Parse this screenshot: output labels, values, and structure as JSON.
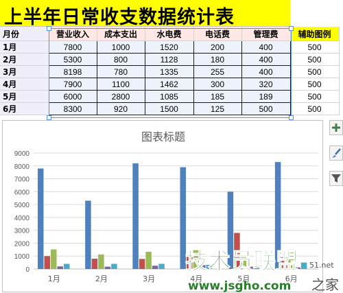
{
  "title": "上半年日常收支数据统计表",
  "headers": {
    "month": "月份",
    "income": "营业收入",
    "cost": "成本支出",
    "water": "水电费",
    "phone": "电话费",
    "mgmt": "管理费",
    "aux": "辅助图例"
  },
  "rows": [
    {
      "month": "1月",
      "income": "7800",
      "cost": "1000",
      "water": "1520",
      "phone": "200",
      "mgmt": "400",
      "aux": "500"
    },
    {
      "month": "2月",
      "income": "5300",
      "cost": "800",
      "water": "1128",
      "phone": "180",
      "mgmt": "400",
      "aux": "500"
    },
    {
      "month": "3月",
      "income": "8198",
      "cost": "780",
      "water": "1335",
      "phone": "255",
      "mgmt": "400",
      "aux": "500"
    },
    {
      "month": "4月",
      "income": "7900",
      "cost": "1100",
      "water": "1462",
      "phone": "300",
      "mgmt": "320",
      "aux": "500"
    },
    {
      "month": "5月",
      "income": "6000",
      "cost": "2800",
      "water": "1085",
      "phone": "185",
      "mgmt": "189",
      "aux": "500"
    },
    {
      "month": "6月",
      "income": "8300",
      "cost": "920",
      "water": "1500",
      "phone": "125",
      "mgmt": "500",
      "aux": "500"
    }
  ],
  "chart_data": {
    "type": "bar",
    "title": "图表标题",
    "categories": [
      "1月",
      "2月",
      "3月",
      "4月",
      "5月",
      "6月"
    ],
    "series": [
      {
        "values": [
          7800,
          5300,
          8198,
          7900,
          6000,
          8300
        ],
        "color": "#4f81bd"
      },
      {
        "values": [
          1000,
          800,
          780,
          1100,
          2800,
          920
        ],
        "color": "#c0504d"
      },
      {
        "values": [
          1520,
          1128,
          1335,
          1462,
          1085,
          1500
        ],
        "color": "#9bbb59"
      },
      {
        "values": [
          200,
          180,
          255,
          300,
          185,
          125
        ],
        "color": "#8064a2"
      },
      {
        "values": [
          400,
          400,
          400,
          320,
          189,
          500
        ],
        "color": "#4bacc6"
      }
    ],
    "ylim": [
      0,
      9000
    ],
    "yticks": [
      "0",
      "1000",
      "2000",
      "3000",
      "4000",
      "5000",
      "6000",
      "7000",
      "8000",
      "9000"
    ],
    "grid": true,
    "legend": "none"
  },
  "side_buttons": [
    {
      "icon": "plus-icon"
    },
    {
      "icon": "brush-icon"
    },
    {
      "icon": "filter-icon"
    }
  ],
  "watermark": {
    "brand": "技术员联盟",
    "url": "www.jsgho.com",
    "partial": "51.net",
    "tail": "之家"
  }
}
